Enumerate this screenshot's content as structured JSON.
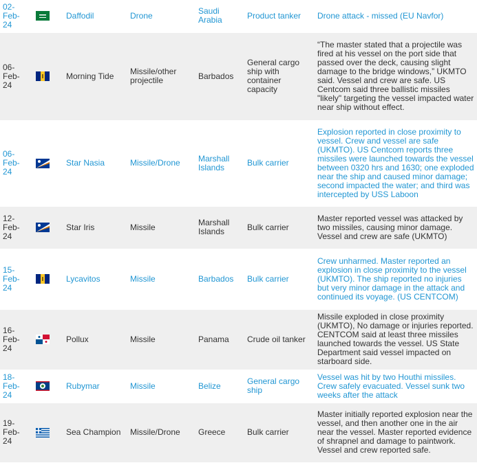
{
  "table": {
    "rows": [
      [
        "02-Feb-24",
        "Daffodil",
        "Drone",
        "Saudi Arabia",
        "Product tanker",
        "Drone attack - missed (EU Navfor)"
      ],
      [
        "06-Feb-24",
        "Morning Tide",
        "Missile/other projectile",
        "Barbados",
        "General cargo ship with container capacity",
        "“The master stated that a projectile was fired at his vessel on the port side that passed over the deck, causing slight damage to the bridge windows,” UKMTO said. Vessel and crew are safe. US Centcom said three ballistic missiles \"likely\" targeting the vessel impacted water near ship without effect."
      ],
      [
        "06-Feb-24",
        "Star Nasia",
        "Missile/Drone",
        "Marshall Islands",
        "Bulk carrier",
        "Explosion reported in close proximity to vessel. Crew and vessel are safe (UKMTO). US Centcom reports three missiles were launched towards the vessel between 0320 hrs and 1630; one exploded near the ship and caused minor damage; second impacted the water; and third was intercepted by USS Laboon"
      ],
      [
        "12-Feb-24",
        "Star Iris",
        "Missile",
        "Marshall Islands",
        "Bulk carrier",
        "Master reported vessel was attacked by two missiles, causing minor damage. Vessel and crew are safe (UKMTO)"
      ],
      [
        "15-Feb-24",
        "Lycavitos",
        "Missile",
        "Barbados",
        "Bulk carrier",
        "Crew unharmed. Master reported an explosion in close proximity to the vessel (UKMTO). The ship reported no injuries but very minor damage in the attack and continued its voyage. (US CENTCOM)"
      ],
      [
        "16-Feb-24",
        "Pollux",
        "Missile",
        "Panama",
        "Crude oil tanker",
        "Missile exploded in close proximity (UKMTO), No damage or injuries reported. CENTCOM said at least three missiles launched towards the vessel. US State Department said vessel impacted on starboard side."
      ],
      [
        "18-Feb-24",
        "Rubymar",
        "Missile",
        "Belize",
        "General cargo ship",
        "Vessel was hit by two Houthi missiles. Crew safely evacuated. Vessel sunk two weeks after the attack"
      ],
      [
        "19-Feb-24",
        "Sea Champion",
        "Missile/Drone",
        "Greece",
        "Bulk carrier",
        "Master initially reported explosion near the vessel, and then another one in the air near the vessel. Master reported evidence of shrapnel and damage to paintwork. Vessel and crew reported safe."
      ]
    ]
  }
}
